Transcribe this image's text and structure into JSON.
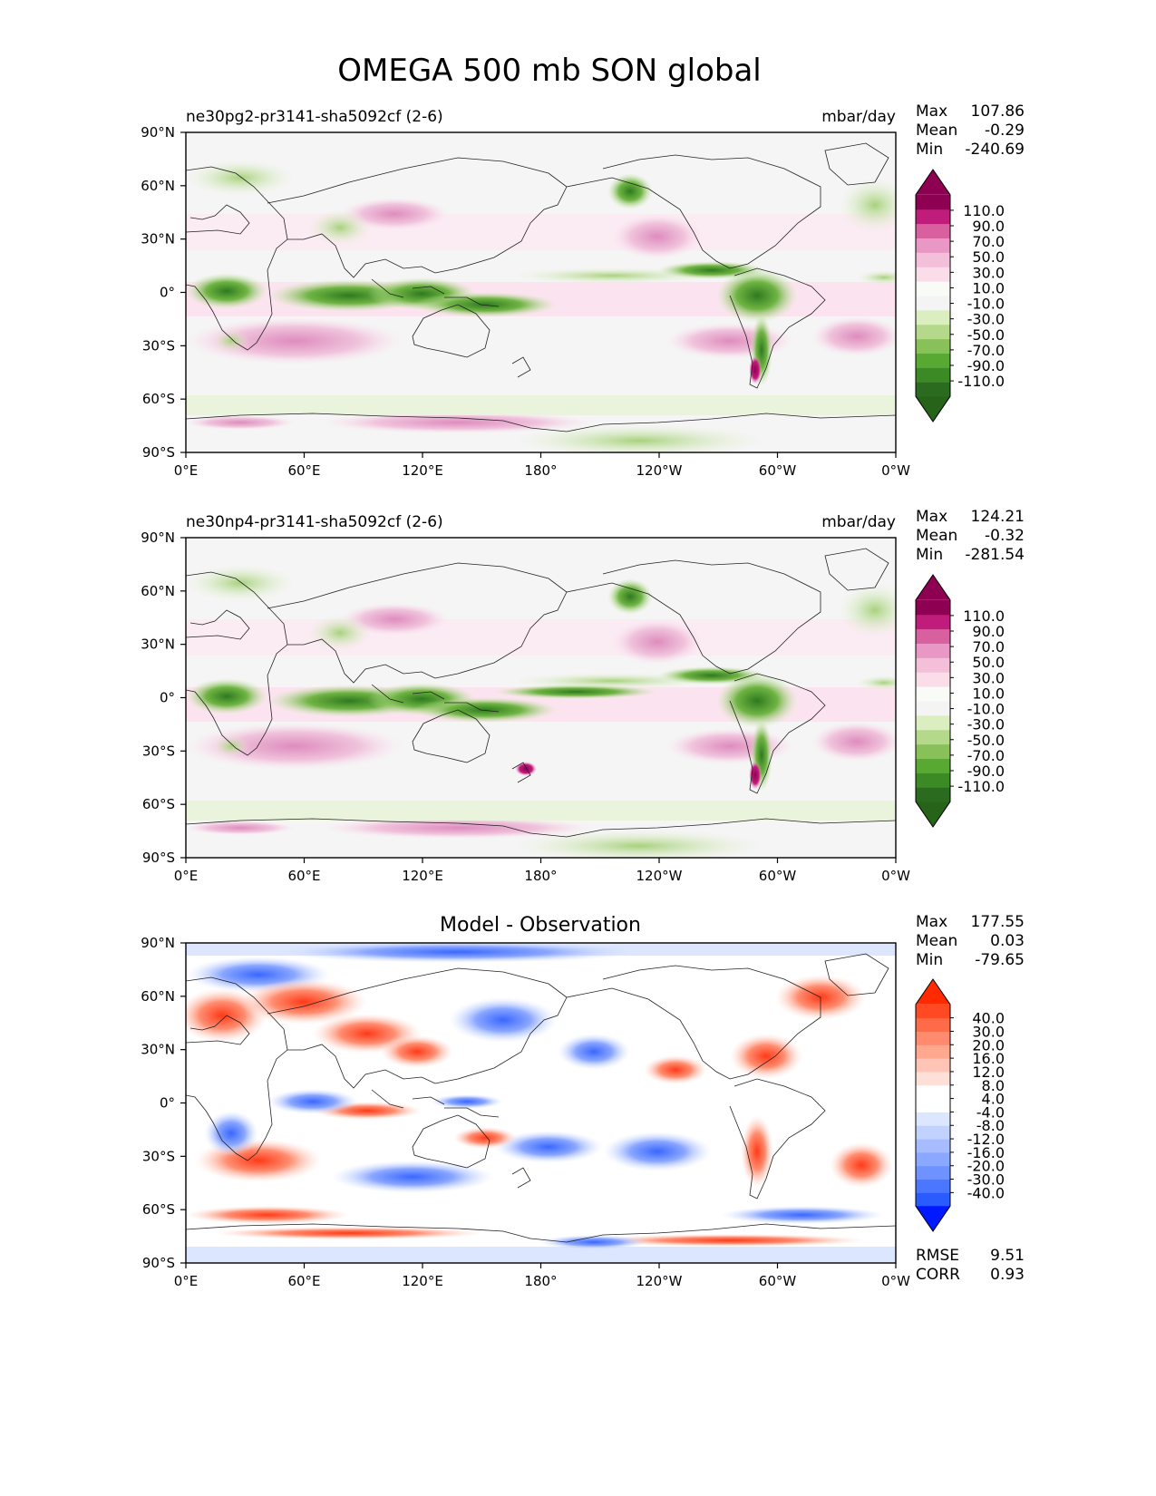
{
  "figure": {
    "title": "OMEGA 500 mb SON global"
  },
  "colors": {
    "model_scale": [
      "#2a6b1f",
      "#3b8a25",
      "#58a834",
      "#88c159",
      "#b5d98a",
      "#dbeebf",
      "#f4f4f4",
      "#f9fbf6",
      "#fadde9",
      "#f3bfd9",
      "#e997c4",
      "#d9609f",
      "#bf1c7b",
      "#8e0152"
    ],
    "model_extend": {
      "below": "#276419",
      "above": "#8e0152"
    },
    "diff_scale": [
      "#2a5bff",
      "#4b76ff",
      "#6e92ff",
      "#8aa8ff",
      "#a6bcff",
      "#c2d2ff",
      "#dde6ff",
      "#ffffff",
      "#ffffff",
      "#ffe0d9",
      "#ffc4b6",
      "#ffa890",
      "#ff8a6e",
      "#ff6a48",
      "#ff4a24"
    ],
    "diff_extend": {
      "below": "#0019ff",
      "above": "#ff2a00"
    }
  },
  "chart_data": [
    {
      "type": "heatmap",
      "panel": "top",
      "title": "ne30pg2-pr3141-sha5092cf (2-6)",
      "units": "mbar/day",
      "stats": {
        "max_label": "Max",
        "max": "107.86",
        "mean_label": "Mean",
        "mean": "-0.29",
        "min_label": "Min",
        "min": "-240.69"
      },
      "xlim": [
        0,
        360
      ],
      "ylim": [
        -90,
        90
      ],
      "xticks": [
        "0°E",
        "60°E",
        "120°E",
        "180°",
        "120°W",
        "60°W",
        "0°W"
      ],
      "yticks": [
        "90°N",
        "60°N",
        "30°N",
        "0°",
        "30°S",
        "60°S",
        "90°S"
      ],
      "colorbar_levels": [
        "110.0",
        "90.0",
        "70.0",
        "50.0",
        "30.0",
        "10.0",
        "-10.0",
        "-30.0",
        "-50.0",
        "-70.0",
        "-90.0",
        "-110.0"
      ]
    },
    {
      "type": "heatmap",
      "panel": "middle",
      "title": "ne30np4-pr3141-sha5092cf (2-6)",
      "units": "mbar/day",
      "stats": {
        "max_label": "Max",
        "max": "124.21",
        "mean_label": "Mean",
        "mean": "-0.32",
        "min_label": "Min",
        "min": "-281.54"
      },
      "xlim": [
        0,
        360
      ],
      "ylim": [
        -90,
        90
      ],
      "xticks": [
        "0°E",
        "60°E",
        "120°E",
        "180°",
        "120°W",
        "60°W",
        "0°W"
      ],
      "yticks": [
        "90°N",
        "60°N",
        "30°N",
        "0°",
        "30°S",
        "60°S",
        "90°S"
      ],
      "colorbar_levels": [
        "110.0",
        "90.0",
        "70.0",
        "50.0",
        "30.0",
        "10.0",
        "-10.0",
        "-30.0",
        "-50.0",
        "-70.0",
        "-90.0",
        "-110.0"
      ]
    },
    {
      "type": "heatmap",
      "panel": "bottom",
      "title": "Model - Observation",
      "stats": {
        "max_label": "Max",
        "max": "177.55",
        "mean_label": "Mean",
        "mean": "0.03",
        "min_label": "Min",
        "min": "-79.65"
      },
      "rmse_label": "RMSE",
      "rmse": "9.51",
      "corr_label": "CORR",
      "corr": "0.93",
      "xlim": [
        0,
        360
      ],
      "ylim": [
        -90,
        90
      ],
      "xticks": [
        "0°E",
        "60°E",
        "120°E",
        "180°",
        "120°W",
        "60°W",
        "0°W"
      ],
      "yticks": [
        "90°N",
        "60°N",
        "30°N",
        "0°",
        "30°S",
        "60°S",
        "90°S"
      ],
      "colorbar_levels": [
        "40.0",
        "30.0",
        "20.0",
        "16.0",
        "12.0",
        "8.0",
        "4.0",
        "-4.0",
        "-8.0",
        "-12.0",
        "-16.0",
        "-20.0",
        "-30.0",
        "-40.0"
      ]
    }
  ]
}
